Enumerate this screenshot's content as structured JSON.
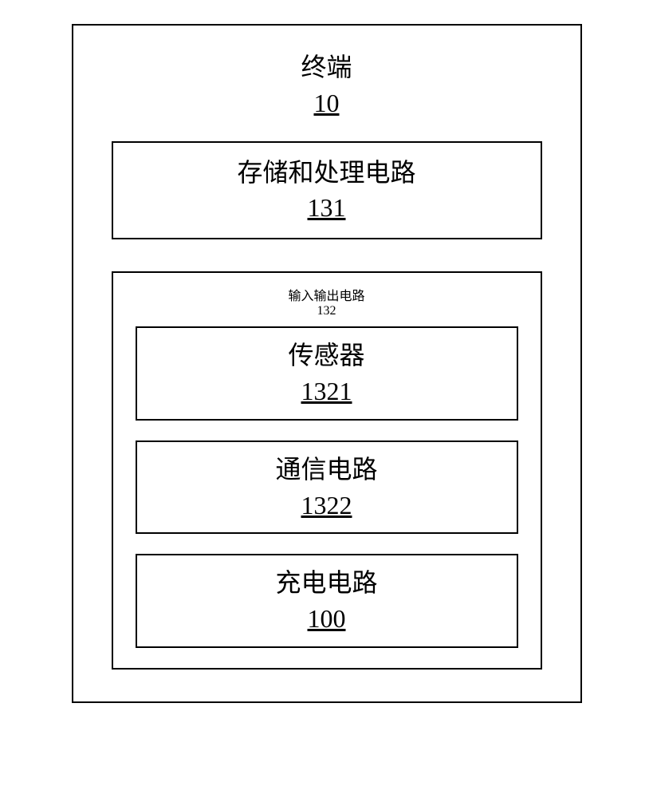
{
  "diagram": {
    "type": "block-diagram",
    "background_color": "#ffffff",
    "border_color": "#000000",
    "border_width": 2,
    "text_color": "#000000",
    "font_family_cjk": "SimSun",
    "font_family_num": "Times New Roman",
    "font_size": 32,
    "outer": {
      "label": "终端",
      "number": "10"
    },
    "storage": {
      "label": "存储和处理电路",
      "number": "131"
    },
    "io": {
      "label": "输入输出电路",
      "number": "132",
      "sensor": {
        "label": "传感器",
        "number": "1321"
      },
      "comm": {
        "label": "通信电路",
        "number": "1322"
      },
      "charging": {
        "label": "充电电路",
        "number": "100"
      }
    }
  }
}
